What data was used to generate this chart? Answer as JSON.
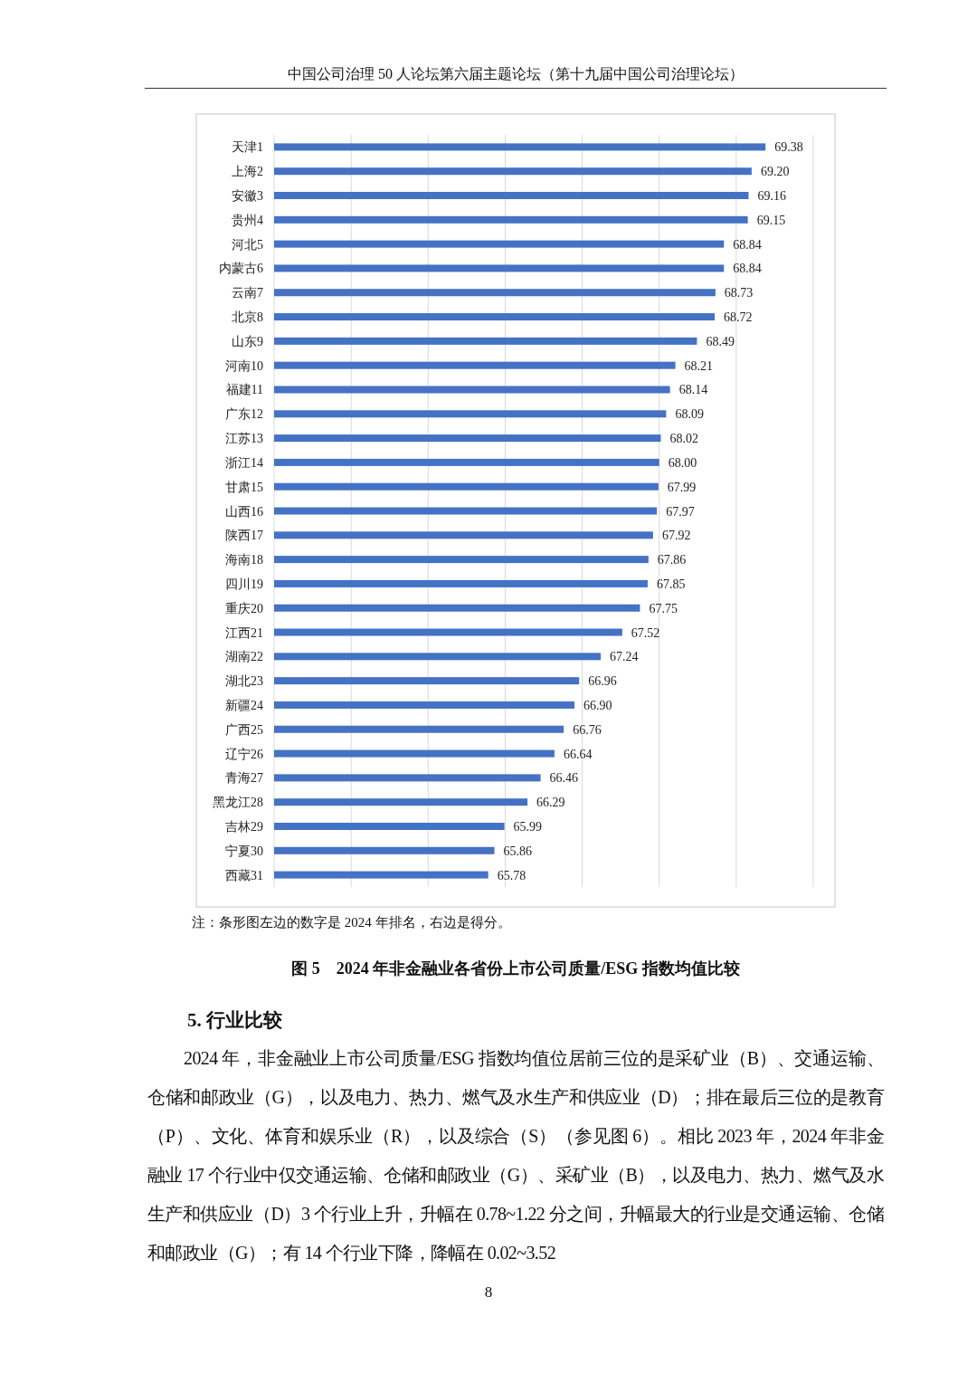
{
  "chart_data": {
    "type": "bar",
    "orientation": "horizontal",
    "title": "图 5　2024 年非金融业各省份上市公司质量/ESG 指数均值比较",
    "categories": [
      "天津1",
      "上海2",
      "安徽3",
      "贵州4",
      "河北5",
      "内蒙古6",
      "云南7",
      "北京8",
      "山东9",
      "河南10",
      "福建11",
      "广东12",
      "江苏13",
      "浙江14",
      "甘肃15",
      "山西16",
      "陕西17",
      "海南18",
      "四川19",
      "重庆20",
      "江西21",
      "湖南22",
      "湖北23",
      "新疆24",
      "广西25",
      "辽宁26",
      "青海27",
      "黑龙江28",
      "吉林29",
      "宁夏30",
      "西藏31"
    ],
    "values": [
      69.38,
      69.2,
      69.16,
      69.15,
      68.84,
      68.84,
      68.73,
      68.72,
      68.49,
      68.21,
      68.14,
      68.09,
      68.02,
      68.0,
      67.99,
      67.97,
      67.92,
      67.86,
      67.85,
      67.75,
      67.52,
      67.24,
      66.96,
      66.9,
      66.76,
      66.64,
      66.46,
      66.29,
      65.99,
      65.86,
      65.78
    ],
    "color": "#4472c4",
    "xlim": [
      63,
      70
    ],
    "xticks": [
      {
        "value": 63,
        "label": null
      },
      {
        "value": 64,
        "label": null
      },
      {
        "value": 65,
        "label": null
      },
      {
        "value": 66,
        "label": null
      },
      {
        "value": 67,
        "label": null
      },
      {
        "value": 68,
        "label": null
      },
      {
        "value": 69,
        "label": null
      },
      {
        "value": 70,
        "label": null
      }
    ],
    "grid": "x",
    "tick_labels": "y",
    "value_labels": [
      "69.38",
      "69.20",
      "69.16",
      "69.15",
      "68.84",
      "68.84",
      "68.73",
      "68.72",
      "68.49",
      "68.21",
      "68.14",
      "68.09",
      "68.02",
      "68.00",
      "67.99",
      "67.97",
      "67.92",
      "67.86",
      "67.85",
      "67.75",
      "67.52",
      "67.24",
      "66.96",
      "66.90",
      "66.76",
      "66.64",
      "66.46",
      "66.29",
      "65.99",
      "65.86",
      "65.78"
    ],
    "annotations": [
      "中国公司治理 50 人论坛第六届主题论坛（第十九届中国公司治理论坛）",
      "注：条形图左边的数字是 2024 年排名，右边是得分。",
      "5. 行业比较",
      "2024 年，非金融业上市公司质量/ESG 指数均值位居前三位的是采矿业（B）、交通运输、仓储和邮政业（G），以及电力、热力、燃气及水生产和供应业（D）；排在最后三位的是教育（P）、文化、体育和娱乐业（R），以及综合（S）（参见图 6）。相比 2023 年，2024 年非金融业 17 个行业中仅交通运输、仓储和邮政业（G）、采矿业（B），以及电力、热力、燃气及水生产和供应业（D）3 个行业上升，升幅在 0.78~1.22 分之间，升幅最大的行业是交通运输、仓储和邮政业（G）；有 14 个行业下降，降幅在 0.02~3.52",
      "8"
    ]
  }
}
